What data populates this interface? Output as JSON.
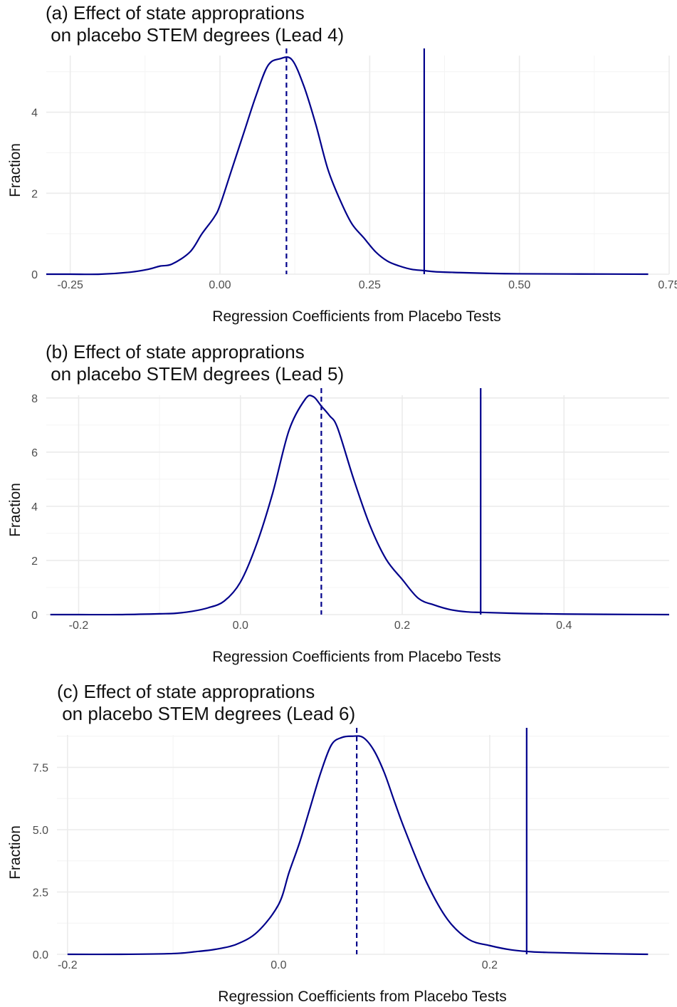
{
  "chart_data": [
    {
      "type": "line",
      "title_line1": "(a) Effect of state approprations",
      "title_line2": " on placebo STEM degrees (Lead 4)",
      "xlabel": "Regression Coefficients from Placebo Tests",
      "ylabel": "Fraction",
      "xlim": [
        -0.29,
        0.75
      ],
      "ylim": [
        0,
        5.4
      ],
      "x_ticks": [
        -0.25,
        0.0,
        0.25,
        0.5,
        0.75
      ],
      "x_tick_labels": [
        "-0.25",
        "0.00",
        "0.25",
        "0.50",
        "0.75"
      ],
      "y_ticks": [
        0,
        2,
        4
      ],
      "y_tick_labels": [
        "0",
        "2",
        "4"
      ],
      "grid": true,
      "line_color": "#00008B",
      "mean_line_x": 0.111,
      "observed_line_x": 0.341,
      "series": [
        {
          "x": [
            -0.29,
            -0.25,
            -0.2,
            -0.15,
            -0.12,
            -0.1,
            -0.08,
            -0.05,
            -0.03,
            -0.01,
            0.0,
            0.02,
            0.04,
            0.06,
            0.08,
            0.1,
            0.12,
            0.14,
            0.16,
            0.18,
            0.2,
            0.22,
            0.24,
            0.26,
            0.28,
            0.3,
            0.32,
            0.34,
            0.36,
            0.4,
            0.45,
            0.5,
            0.6,
            0.715
          ],
          "y": [
            0.0,
            0.0,
            0.0,
            0.05,
            0.12,
            0.2,
            0.25,
            0.55,
            1.0,
            1.4,
            1.7,
            2.6,
            3.5,
            4.4,
            5.15,
            5.32,
            5.3,
            4.65,
            3.7,
            2.6,
            1.85,
            1.25,
            0.9,
            0.55,
            0.32,
            0.2,
            0.12,
            0.09,
            0.06,
            0.04,
            0.02,
            0.01,
            0.005,
            0.0
          ]
        }
      ]
    },
    {
      "type": "line",
      "title_line1": "(b) Effect of state approprations",
      "title_line2": " on placebo STEM degrees (Lead 5)",
      "xlabel": "Regression Coefficients from Placebo Tests",
      "ylabel": "Fraction",
      "xlim": [
        -0.24,
        0.53
      ],
      "ylim": [
        0,
        8.1
      ],
      "x_ticks": [
        -0.2,
        0.0,
        0.2,
        0.4
      ],
      "x_tick_labels": [
        "-0.2",
        "0.0",
        "0.2",
        "0.4"
      ],
      "y_ticks": [
        0,
        2,
        4,
        6,
        8
      ],
      "y_tick_labels": [
        "0",
        "2",
        "4",
        "6",
        "8"
      ],
      "grid": true,
      "line_color": "#00008B",
      "mean_line_x": 0.1,
      "observed_line_x": 0.297,
      "series": [
        {
          "x": [
            -0.235,
            -0.2,
            -0.15,
            -0.1,
            -0.08,
            -0.06,
            -0.04,
            -0.02,
            0.0,
            0.02,
            0.04,
            0.06,
            0.08,
            0.09,
            0.1,
            0.11,
            0.12,
            0.14,
            0.16,
            0.18,
            0.2,
            0.22,
            0.24,
            0.26,
            0.28,
            0.3,
            0.35,
            0.4,
            0.45,
            0.53
          ],
          "y": [
            0.0,
            0.0,
            0.0,
            0.03,
            0.05,
            0.12,
            0.25,
            0.5,
            1.2,
            2.6,
            4.5,
            6.8,
            7.95,
            8.05,
            7.7,
            7.35,
            6.9,
            5.0,
            3.3,
            2.05,
            1.3,
            0.6,
            0.35,
            0.18,
            0.1,
            0.08,
            0.04,
            0.02,
            0.01,
            0.0
          ]
        }
      ]
    },
    {
      "type": "line",
      "title_line1": "(c) Effect of state approprations",
      "title_line2": " on placebo STEM degrees (Lead 6)",
      "xlabel": "Regression Coefficients from Placebo Tests",
      "ylabel": "Fraction",
      "xlim": [
        -0.21,
        0.37
      ],
      "ylim": [
        0,
        8.8
      ],
      "x_ticks": [
        -0.2,
        0.0,
        0.2
      ],
      "x_tick_labels": [
        "-0.2",
        "0.0",
        "0.2"
      ],
      "y_ticks": [
        0.0,
        2.5,
        5.0,
        7.5
      ],
      "y_tick_labels": [
        "0.0",
        "2.5",
        "5.0",
        "7.5"
      ],
      "grid": true,
      "line_color": "#00008B",
      "mean_line_x": 0.074,
      "observed_line_x": 0.235,
      "series": [
        {
          "x": [
            -0.2,
            -0.15,
            -0.1,
            -0.08,
            -0.06,
            -0.04,
            -0.02,
            0.0,
            0.01,
            0.02,
            0.03,
            0.04,
            0.05,
            0.06,
            0.07,
            0.08,
            0.09,
            0.1,
            0.11,
            0.12,
            0.14,
            0.16,
            0.18,
            0.2,
            0.22,
            0.24,
            0.26,
            0.3,
            0.35
          ],
          "y": [
            0.0,
            0.0,
            0.03,
            0.1,
            0.2,
            0.4,
            0.9,
            2.0,
            3.3,
            4.5,
            5.9,
            7.3,
            8.4,
            8.7,
            8.75,
            8.7,
            8.2,
            7.3,
            6.1,
            4.95,
            2.9,
            1.4,
            0.6,
            0.35,
            0.18,
            0.1,
            0.07,
            0.03,
            0.0
          ]
        }
      ]
    }
  ]
}
